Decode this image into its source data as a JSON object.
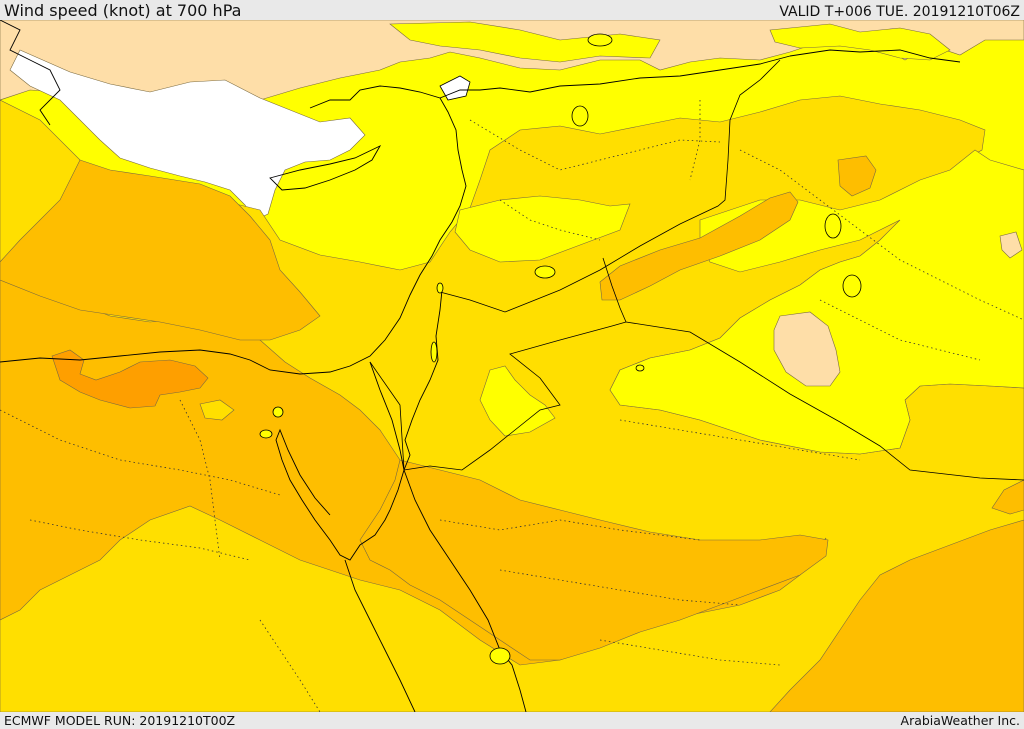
{
  "header": {
    "title": "Wind speed (knot) at 700 hPa",
    "valid_time": "VALID T+006 TUE. 20191210T06Z"
  },
  "footer": {
    "model_run": "ECMWF MODEL RUN: 20191210T00Z",
    "credit": "ArabiaWeather Inc."
  },
  "map": {
    "colors": {
      "sea_no_data": "#ffffff",
      "band_lightest": "#fedea8",
      "band_light": "#ffff00",
      "band_mid": "#ffdf00",
      "band_strong": "#febe00",
      "band_strongest": "#fe9f00"
    }
  }
}
